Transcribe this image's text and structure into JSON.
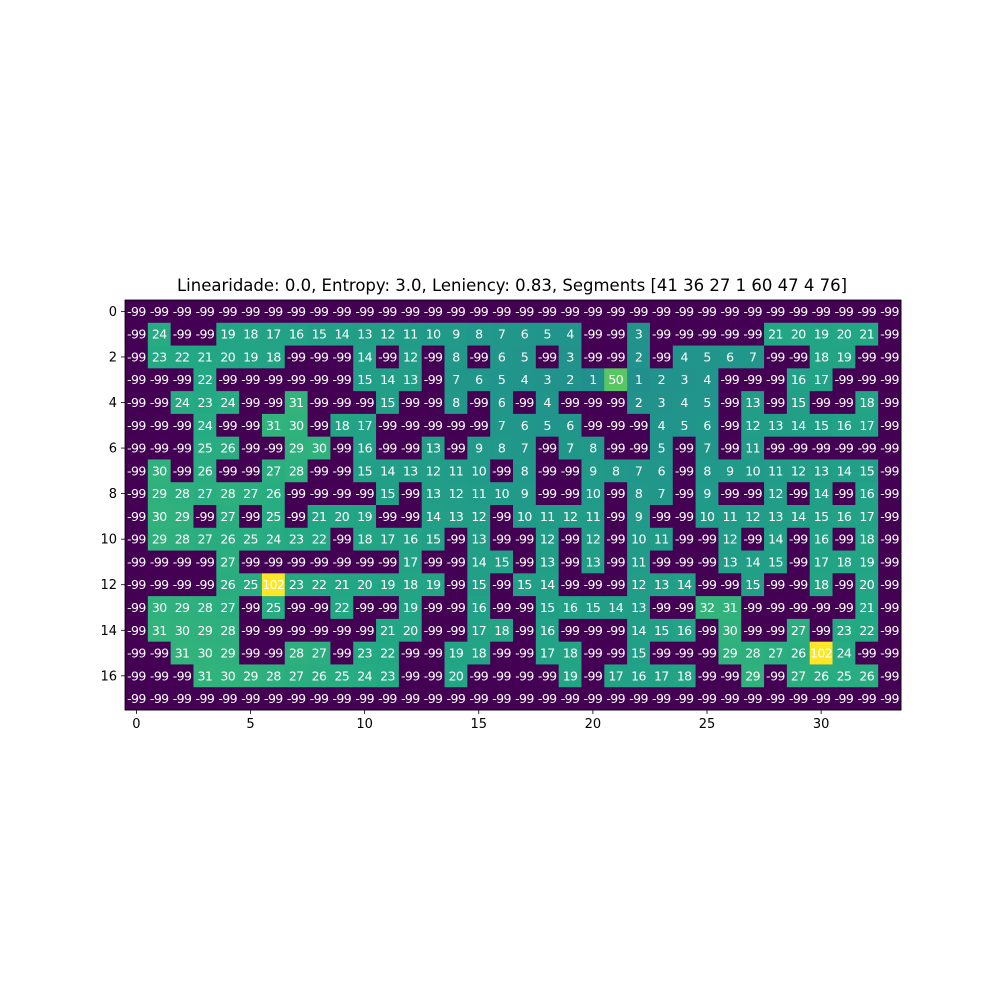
{
  "chart_data": {
    "type": "heatmap",
    "title": "Linearidade: 0.0, Entropy: 3.0, Leniency: 0.83, Segments [41 36 27  1 60 47  4 76]",
    "xlabel": "",
    "ylabel": "",
    "x_ticks": [
      0,
      5,
      10,
      15,
      20,
      25,
      30
    ],
    "y_ticks": [
      0,
      2,
      4,
      6,
      8,
      10,
      12,
      14,
      16
    ],
    "colormap": "viridis",
    "color_stops": {
      "low": "#440154",
      "mid": "#21918c",
      "high": "#fde725"
    },
    "value_range": [
      -99,
      102
    ],
    "rows": 18,
    "cols": 34,
    "grid": [
      [
        -99,
        -99,
        -99,
        -99,
        -99,
        -99,
        -99,
        -99,
        -99,
        -99,
        -99,
        -99,
        -99,
        -99,
        -99,
        -99,
        -99,
        -99,
        -99,
        -99,
        -99,
        -99,
        -99,
        -99,
        -99,
        -99,
        -99,
        -99,
        -99,
        -99,
        -99,
        -99,
        -99,
        -99
      ],
      [
        -99,
        24,
        -99,
        -99,
        19,
        18,
        17,
        16,
        15,
        14,
        13,
        12,
        11,
        10,
        9,
        8,
        7,
        6,
        5,
        4,
        -99,
        -99,
        3,
        -99,
        -99,
        -99,
        -99,
        -99,
        21,
        20,
        19,
        20,
        21,
        -99
      ],
      [
        -99,
        23,
        22,
        21,
        20,
        19,
        18,
        -99,
        -99,
        -99,
        14,
        -99,
        12,
        -99,
        8,
        -99,
        6,
        5,
        -99,
        3,
        -99,
        -99,
        2,
        -99,
        4,
        5,
        6,
        7,
        -99,
        -99,
        18,
        19,
        -99,
        -99
      ],
      [
        -99,
        -99,
        -99,
        22,
        -99,
        -99,
        -99,
        -99,
        -99,
        -99,
        15,
        14,
        13,
        -99,
        7,
        6,
        5,
        4,
        3,
        2,
        1,
        50,
        1,
        2,
        3,
        4,
        -99,
        -99,
        -99,
        16,
        17,
        -99,
        -99,
        -99
      ],
      [
        -99,
        -99,
        24,
        23,
        24,
        -99,
        -99,
        31,
        -99,
        -99,
        -99,
        15,
        -99,
        -99,
        8,
        -99,
        6,
        -99,
        4,
        -99,
        -99,
        -99,
        2,
        3,
        4,
        5,
        -99,
        13,
        -99,
        15,
        -99,
        -99,
        18,
        -99
      ],
      [
        -99,
        -99,
        -99,
        24,
        -99,
        -99,
        31,
        30,
        -99,
        18,
        17,
        -99,
        -99,
        -99,
        -99,
        -99,
        7,
        6,
        5,
        6,
        -99,
        -99,
        -99,
        4,
        5,
        6,
        -99,
        12,
        13,
        14,
        15,
        16,
        17,
        -99
      ],
      [
        -99,
        -99,
        -99,
        25,
        26,
        -99,
        -99,
        29,
        30,
        -99,
        16,
        -99,
        -99,
        13,
        -99,
        9,
        8,
        7,
        -99,
        7,
        8,
        -99,
        -99,
        5,
        -99,
        7,
        -99,
        11,
        -99,
        -99,
        -99,
        -99,
        -99,
        -99
      ],
      [
        -99,
        30,
        -99,
        26,
        -99,
        -99,
        27,
        28,
        -99,
        -99,
        15,
        14,
        13,
        12,
        11,
        10,
        -99,
        8,
        -99,
        -99,
        9,
        8,
        7,
        6,
        -99,
        8,
        9,
        10,
        11,
        12,
        13,
        14,
        15,
        -99
      ],
      [
        -99,
        29,
        28,
        27,
        28,
        27,
        26,
        -99,
        -99,
        -99,
        -99,
        15,
        -99,
        13,
        12,
        11,
        10,
        9,
        -99,
        -99,
        10,
        -99,
        8,
        7,
        -99,
        9,
        -99,
        -99,
        12,
        -99,
        14,
        -99,
        16,
        -99
      ],
      [
        -99,
        30,
        29,
        -99,
        27,
        -99,
        25,
        -99,
        21,
        20,
        19,
        -99,
        -99,
        14,
        13,
        12,
        -99,
        10,
        11,
        12,
        11,
        -99,
        9,
        -99,
        -99,
        10,
        11,
        12,
        13,
        14,
        15,
        16,
        17,
        -99
      ],
      [
        -99,
        29,
        28,
        27,
        26,
        25,
        24,
        23,
        22,
        -99,
        18,
        17,
        16,
        15,
        -99,
        13,
        -99,
        -99,
        12,
        -99,
        12,
        -99,
        10,
        11,
        -99,
        -99,
        12,
        -99,
        14,
        -99,
        16,
        -99,
        18,
        -99
      ],
      [
        -99,
        -99,
        -99,
        -99,
        27,
        -99,
        -99,
        -99,
        -99,
        -99,
        -99,
        -99,
        17,
        -99,
        -99,
        14,
        15,
        -99,
        13,
        -99,
        13,
        -99,
        11,
        -99,
        -99,
        -99,
        13,
        14,
        15,
        -99,
        17,
        18,
        19,
        -99
      ],
      [
        -99,
        -99,
        -99,
        -99,
        26,
        25,
        102,
        23,
        22,
        21,
        20,
        19,
        18,
        19,
        -99,
        15,
        -99,
        15,
        14,
        -99,
        -99,
        -99,
        12,
        13,
        14,
        -99,
        -99,
        15,
        -99,
        -99,
        18,
        -99,
        20,
        -99
      ],
      [
        -99,
        30,
        29,
        28,
        27,
        -99,
        25,
        -99,
        -99,
        22,
        -99,
        -99,
        19,
        -99,
        -99,
        16,
        -99,
        -99,
        15,
        16,
        15,
        14,
        13,
        -99,
        -99,
        32,
        31,
        -99,
        -99,
        -99,
        -99,
        -99,
        21,
        -99
      ],
      [
        -99,
        31,
        30,
        29,
        28,
        -99,
        -99,
        -99,
        -99,
        -99,
        -99,
        21,
        20,
        -99,
        -99,
        17,
        18,
        -99,
        16,
        -99,
        -99,
        -99,
        14,
        15,
        16,
        -99,
        30,
        -99,
        -99,
        27,
        -99,
        23,
        22,
        -99
      ],
      [
        -99,
        -99,
        31,
        30,
        29,
        -99,
        -99,
        28,
        27,
        -99,
        23,
        22,
        -99,
        -99,
        19,
        18,
        -99,
        -99,
        17,
        18,
        -99,
        -99,
        15,
        -99,
        -99,
        -99,
        29,
        28,
        27,
        26,
        102,
        24,
        -99,
        -99
      ],
      [
        -99,
        -99,
        -99,
        31,
        30,
        29,
        28,
        27,
        26,
        25,
        24,
        23,
        -99,
        -99,
        20,
        -99,
        -99,
        -99,
        -99,
        19,
        -99,
        17,
        16,
        17,
        18,
        -99,
        -99,
        29,
        -99,
        27,
        26,
        25,
        26,
        -99
      ],
      [
        -99,
        -99,
        -99,
        -99,
        -99,
        -99,
        -99,
        -99,
        -99,
        -99,
        -99,
        -99,
        -99,
        -99,
        -99,
        -99,
        -99,
        -99,
        -99,
        -99,
        -99,
        -99,
        -99,
        -99,
        -99,
        -99,
        -99,
        -99,
        -99,
        -99,
        -99,
        -99,
        -99,
        -99
      ]
    ]
  }
}
